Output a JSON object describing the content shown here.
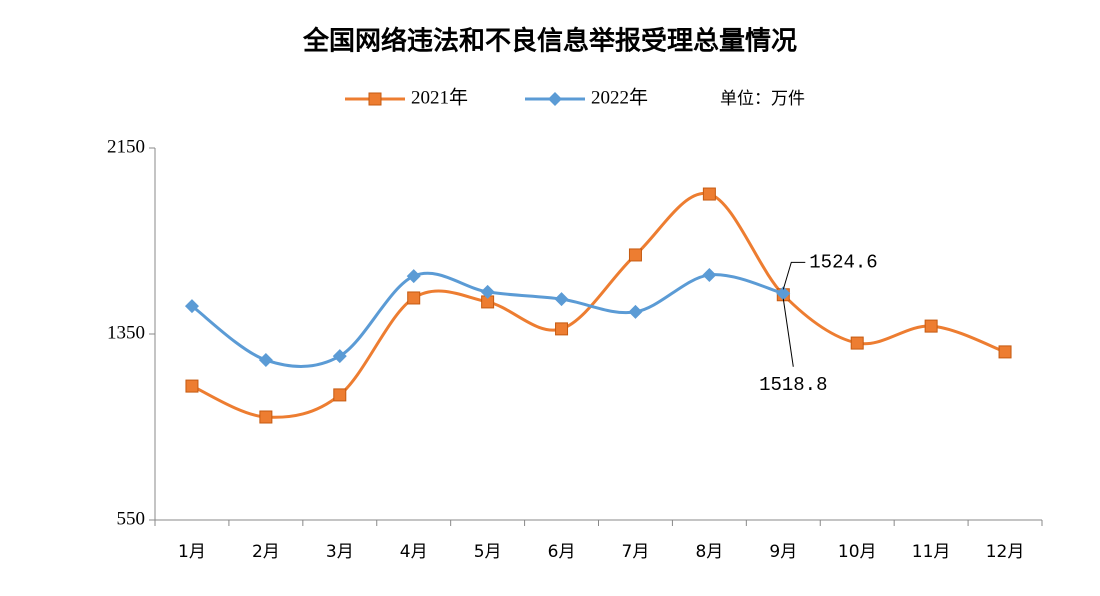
{
  "chart_data": {
    "type": "line",
    "title": "全国网络违法和不良信息举报受理总量情况",
    "unit": "单位：万件",
    "categories": [
      "1月",
      "2月",
      "3月",
      "4月",
      "5月",
      "6月",
      "7月",
      "8月",
      "9月",
      "10月",
      "11月",
      "12月"
    ],
    "series": [
      {
        "name": "2021年",
        "color": "#ed7d31",
        "marker": "square",
        "values": [
          1126,
          993,
          1088,
          1505,
          1488,
          1372,
          1690,
          1952,
          1518.8,
          1311,
          1384,
          1273
        ]
      },
      {
        "name": "2022年",
        "color": "#5b9bd5",
        "marker": "diamond",
        "values": [
          1470,
          1238,
          1255,
          1599,
          1531,
          1500,
          1445,
          1604,
          1524.6,
          null,
          null,
          null
        ]
      }
    ],
    "ylim": [
      550,
      2150
    ],
    "yticks": [
      550,
      1350,
      2150
    ],
    "grid": false,
    "smooth": true
  }
}
